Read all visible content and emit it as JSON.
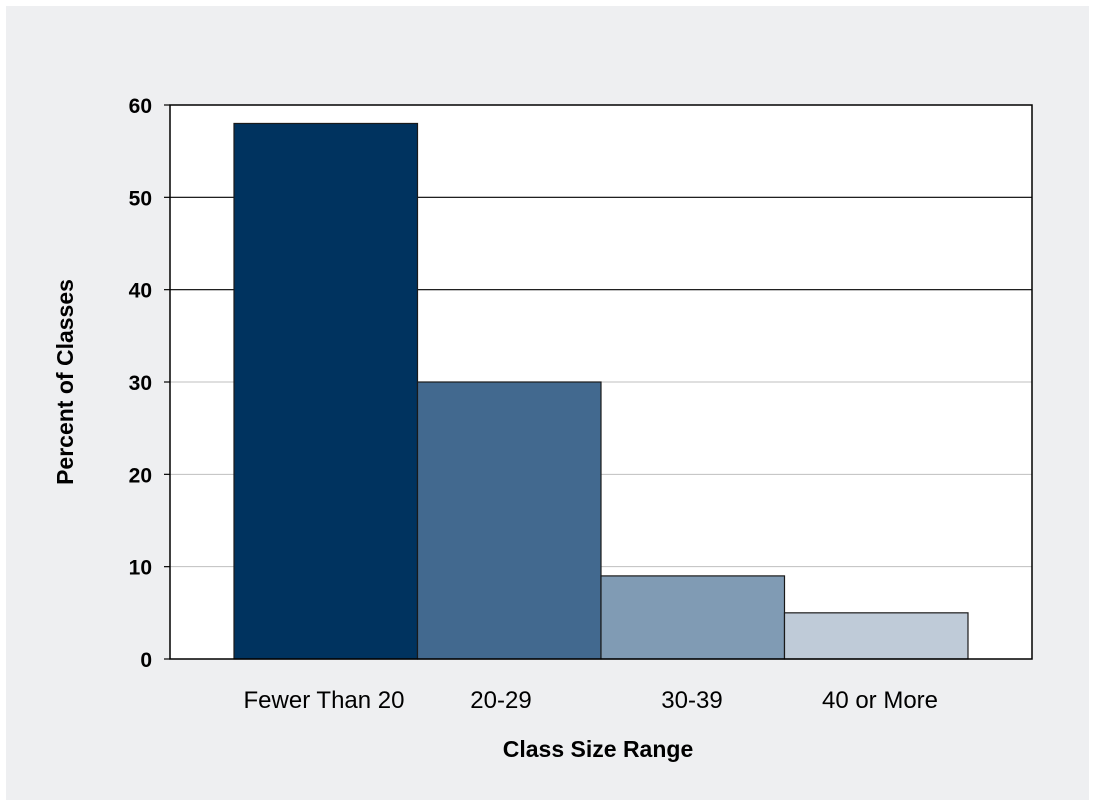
{
  "chart_data": {
    "type": "bar",
    "title": "",
    "xlabel": "Class Size Range",
    "ylabel": "Percent of Classes",
    "categories": [
      "Fewer Than 20",
      "20-29",
      "30-39",
      "40 or More"
    ],
    "values": [
      58,
      30,
      9,
      5
    ],
    "ylim": [
      0,
      60
    ],
    "yticks": [
      "0",
      "10",
      "20",
      "30",
      "40",
      "50",
      "60"
    ],
    "grid": true,
    "legend": "none",
    "bar_colors": [
      "#00335f",
      "#42698f",
      "#809bb4",
      "#bfcbd8"
    ]
  },
  "colors": {
    "page_background": "#eeeff1",
    "plot_background": "#ffffff",
    "axis": "#000000",
    "grid_major": "#000000",
    "grid_minor": "#bfbfbf"
  }
}
